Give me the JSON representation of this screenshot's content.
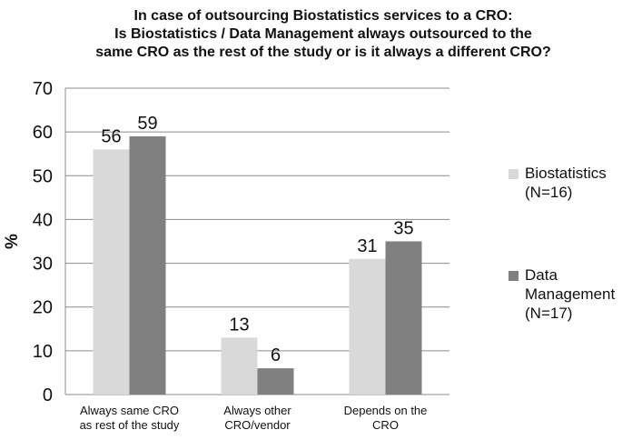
{
  "chart_data": {
    "type": "bar",
    "title_lines": [
      "In case of outsourcing Biostatistics services to a CRO:",
      "Is Biostatistics / Data Management always outsourced to the",
      "same CRO as the rest of the study or is it always a different CRO?"
    ],
    "xlabel": "",
    "ylabel": "%",
    "ylim": [
      0,
      70
    ],
    "yticks": [
      0,
      10,
      20,
      30,
      40,
      50,
      60,
      70
    ],
    "grid": true,
    "legend_position": "right",
    "categories": [
      "Always same CRO\nas rest of the study",
      "Always other\nCRO/vendor",
      "Depends on the\nCRO"
    ],
    "series": [
      {
        "name": "Biostatistics\n(N=16)",
        "color": "#d9d9d9",
        "values": [
          56,
          13,
          31
        ]
      },
      {
        "name": "Data\nManagement\n (N=17)",
        "color": "#808080",
        "values": [
          59,
          6,
          35
        ]
      }
    ]
  }
}
